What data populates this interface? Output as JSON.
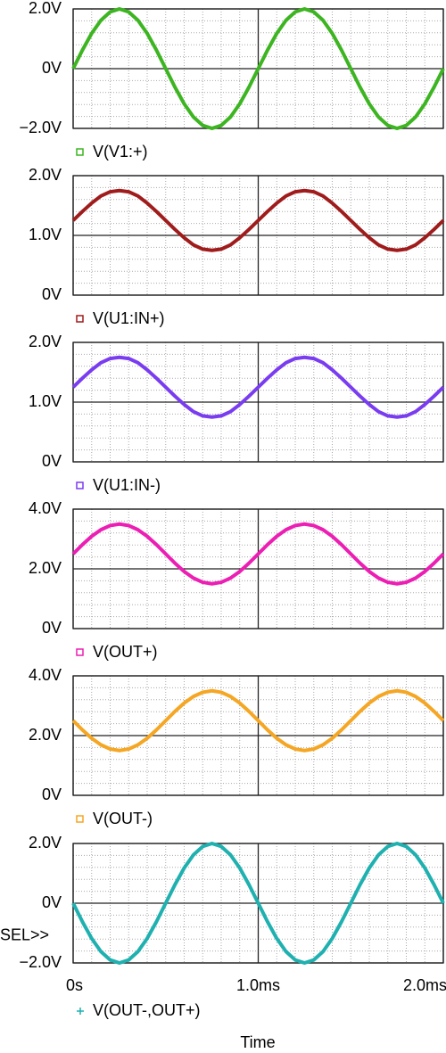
{
  "chart_data": [
    {
      "type": "line",
      "xlim": [
        0,
        2
      ],
      "xticks": [
        0,
        1,
        2
      ],
      "ylim": [
        -2,
        2
      ],
      "yticks": [
        {
          "value": -2,
          "label": "−2.0V"
        },
        {
          "value": 0,
          "label": "0V"
        },
        {
          "value": 2,
          "label": "2.0V"
        }
      ],
      "x": [
        0,
        0.05,
        0.1,
        0.15,
        0.2,
        0.25,
        0.3,
        0.35,
        0.4,
        0.45,
        0.5,
        0.55,
        0.6,
        0.65,
        0.7,
        0.75,
        0.8,
        0.85,
        0.9,
        0.95,
        1,
        1.05,
        1.1,
        1.15,
        1.2,
        1.25,
        1.3,
        1.35,
        1.4,
        1.45,
        1.5,
        1.55,
        1.6,
        1.65,
        1.7,
        1.75,
        1.8,
        1.85,
        1.9,
        1.95,
        2
      ],
      "series": [
        {
          "name": "V(V1:+)",
          "color": "#3cb521",
          "marker": "square",
          "values": [
            0,
            0.62,
            1.18,
            1.62,
            1.9,
            2,
            1.9,
            1.62,
            1.18,
            0.62,
            0,
            -0.62,
            -1.18,
            -1.62,
            -1.9,
            -2,
            -1.9,
            -1.62,
            -1.18,
            -0.62,
            0,
            0.62,
            1.18,
            1.62,
            1.9,
            2,
            1.9,
            1.62,
            1.18,
            0.62,
            0,
            -0.62,
            -1.18,
            -1.62,
            -1.9,
            -2,
            -1.9,
            -1.62,
            -1.18,
            -0.62,
            0
          ]
        }
      ]
    },
    {
      "type": "line",
      "xlim": [
        0,
        2
      ],
      "xticks": [
        0,
        1,
        2
      ],
      "ylim": [
        0,
        2
      ],
      "yticks": [
        {
          "value": 0,
          "label": "0V"
        },
        {
          "value": 1,
          "label": "1.0V"
        },
        {
          "value": 2,
          "label": "2.0V"
        }
      ],
      "x": [
        0,
        0.05,
        0.1,
        0.15,
        0.2,
        0.25,
        0.3,
        0.35,
        0.4,
        0.45,
        0.5,
        0.55,
        0.6,
        0.65,
        0.7,
        0.75,
        0.8,
        0.85,
        0.9,
        0.95,
        1,
        1.05,
        1.1,
        1.15,
        1.2,
        1.25,
        1.3,
        1.35,
        1.4,
        1.45,
        1.5,
        1.55,
        1.6,
        1.65,
        1.7,
        1.75,
        1.8,
        1.85,
        1.9,
        1.95,
        2
      ],
      "series": [
        {
          "name": "V(U1:IN+)",
          "color": "#a01c1c",
          "marker": "square",
          "values": [
            1.25,
            1.4,
            1.54,
            1.66,
            1.73,
            1.75,
            1.73,
            1.66,
            1.54,
            1.4,
            1.25,
            1.1,
            0.96,
            0.84,
            0.77,
            0.75,
            0.77,
            0.84,
            0.96,
            1.1,
            1.25,
            1.4,
            1.54,
            1.66,
            1.73,
            1.75,
            1.73,
            1.66,
            1.54,
            1.4,
            1.25,
            1.1,
            0.96,
            0.84,
            0.77,
            0.75,
            0.77,
            0.84,
            0.96,
            1.1,
            1.25
          ]
        }
      ]
    },
    {
      "type": "line",
      "xlim": [
        0,
        2
      ],
      "xticks": [
        0,
        1,
        2
      ],
      "ylim": [
        0,
        2
      ],
      "yticks": [
        {
          "value": 0,
          "label": "0V"
        },
        {
          "value": 1,
          "label": "1.0V"
        },
        {
          "value": 2,
          "label": "2.0V"
        }
      ],
      "x": [
        0,
        0.05,
        0.1,
        0.15,
        0.2,
        0.25,
        0.3,
        0.35,
        0.4,
        0.45,
        0.5,
        0.55,
        0.6,
        0.65,
        0.7,
        0.75,
        0.8,
        0.85,
        0.9,
        0.95,
        1,
        1.05,
        1.1,
        1.15,
        1.2,
        1.25,
        1.3,
        1.35,
        1.4,
        1.45,
        1.5,
        1.55,
        1.6,
        1.65,
        1.7,
        1.75,
        1.8,
        1.85,
        1.9,
        1.95,
        2
      ],
      "series": [
        {
          "name": "V(U1:IN-)",
          "color": "#7a3cf0",
          "marker": "square",
          "values": [
            1.25,
            1.4,
            1.54,
            1.66,
            1.73,
            1.75,
            1.73,
            1.66,
            1.54,
            1.4,
            1.25,
            1.1,
            0.96,
            0.84,
            0.77,
            0.75,
            0.77,
            0.84,
            0.96,
            1.1,
            1.25,
            1.4,
            1.54,
            1.66,
            1.73,
            1.75,
            1.73,
            1.66,
            1.54,
            1.4,
            1.25,
            1.1,
            0.96,
            0.84,
            0.77,
            0.75,
            0.77,
            0.84,
            0.96,
            1.1,
            1.25
          ]
        }
      ]
    },
    {
      "type": "line",
      "xlim": [
        0,
        2
      ],
      "xticks": [
        0,
        1,
        2
      ],
      "ylim": [
        0,
        4
      ],
      "yticks": [
        {
          "value": 0,
          "label": "0V"
        },
        {
          "value": 2,
          "label": "2.0V"
        },
        {
          "value": 4,
          "label": "4.0V"
        }
      ],
      "x": [
        0,
        0.05,
        0.1,
        0.15,
        0.2,
        0.25,
        0.3,
        0.35,
        0.4,
        0.45,
        0.5,
        0.55,
        0.6,
        0.65,
        0.7,
        0.75,
        0.8,
        0.85,
        0.9,
        0.95,
        1,
        1.05,
        1.1,
        1.15,
        1.2,
        1.25,
        1.3,
        1.35,
        1.4,
        1.45,
        1.5,
        1.55,
        1.6,
        1.65,
        1.7,
        1.75,
        1.8,
        1.85,
        1.9,
        1.95,
        2
      ],
      "series": [
        {
          "name": "V(OUT+)",
          "color": "#ec1eb4",
          "marker": "square",
          "values": [
            2.5,
            2.81,
            3.09,
            3.31,
            3.45,
            3.5,
            3.45,
            3.31,
            3.09,
            2.81,
            2.5,
            2.19,
            1.91,
            1.69,
            1.55,
            1.5,
            1.55,
            1.69,
            1.91,
            2.19,
            2.5,
            2.81,
            3.09,
            3.31,
            3.45,
            3.5,
            3.45,
            3.31,
            3.09,
            2.81,
            2.5,
            2.19,
            1.91,
            1.69,
            1.55,
            1.5,
            1.55,
            1.69,
            1.91,
            2.19,
            2.5
          ]
        }
      ]
    },
    {
      "type": "line",
      "xlim": [
        0,
        2
      ],
      "xticks": [
        0,
        1,
        2
      ],
      "ylim": [
        0,
        4
      ],
      "yticks": [
        {
          "value": 0,
          "label": "0V"
        },
        {
          "value": 2,
          "label": "2.0V"
        },
        {
          "value": 4,
          "label": "4.0V"
        }
      ],
      "x": [
        0,
        0.05,
        0.1,
        0.15,
        0.2,
        0.25,
        0.3,
        0.35,
        0.4,
        0.45,
        0.5,
        0.55,
        0.6,
        0.65,
        0.7,
        0.75,
        0.8,
        0.85,
        0.9,
        0.95,
        1,
        1.05,
        1.1,
        1.15,
        1.2,
        1.25,
        1.3,
        1.35,
        1.4,
        1.45,
        1.5,
        1.55,
        1.6,
        1.65,
        1.7,
        1.75,
        1.8,
        1.85,
        1.9,
        1.95,
        2
      ],
      "series": [
        {
          "name": "V(OUT-)",
          "color": "#f5a623",
          "marker": "square",
          "values": [
            2.5,
            2.19,
            1.91,
            1.69,
            1.55,
            1.5,
            1.55,
            1.69,
            1.91,
            2.19,
            2.5,
            2.81,
            3.09,
            3.31,
            3.45,
            3.5,
            3.45,
            3.31,
            3.09,
            2.81,
            2.5,
            2.19,
            1.91,
            1.69,
            1.55,
            1.5,
            1.55,
            1.69,
            1.91,
            2.19,
            2.5,
            2.81,
            3.09,
            3.31,
            3.45,
            3.5,
            3.45,
            3.31,
            3.09,
            2.81,
            2.5
          ]
        }
      ]
    },
    {
      "type": "line",
      "xlim": [
        0,
        2
      ],
      "xlabel": "Time",
      "annotation": "SEL>>",
      "xticks": [
        {
          "value": 0,
          "label": "0s"
        },
        {
          "value": 1,
          "label": "1.0ms"
        },
        {
          "value": 2,
          "label": "2.0ms"
        }
      ],
      "ylim": [
        -2,
        2
      ],
      "yticks": [
        {
          "value": -2,
          "label": "−2.0V"
        },
        {
          "value": 0,
          "label": "0V"
        },
        {
          "value": 2,
          "label": "2.0V"
        }
      ],
      "x": [
        0,
        0.05,
        0.1,
        0.15,
        0.2,
        0.25,
        0.3,
        0.35,
        0.4,
        0.45,
        0.5,
        0.55,
        0.6,
        0.65,
        0.7,
        0.75,
        0.8,
        0.85,
        0.9,
        0.95,
        1,
        1.05,
        1.1,
        1.15,
        1.2,
        1.25,
        1.3,
        1.35,
        1.4,
        1.45,
        1.5,
        1.55,
        1.6,
        1.65,
        1.7,
        1.75,
        1.8,
        1.85,
        1.9,
        1.95,
        2
      ],
      "series": [
        {
          "name": "V(OUT-,OUT+)",
          "color": "#1fb0b0",
          "marker": "plus",
          "values": [
            0,
            -0.62,
            -1.18,
            -1.62,
            -1.9,
            -2,
            -1.9,
            -1.62,
            -1.18,
            -0.62,
            0,
            0.62,
            1.18,
            1.62,
            1.9,
            2,
            1.9,
            1.62,
            1.18,
            0.62,
            0,
            -0.62,
            -1.18,
            -1.62,
            -1.9,
            -2,
            -1.9,
            -1.62,
            -1.18,
            -0.62,
            0,
            0.62,
            1.18,
            1.62,
            1.9,
            2,
            1.9,
            1.62,
            1.18,
            0.62,
            0
          ]
        }
      ]
    }
  ]
}
